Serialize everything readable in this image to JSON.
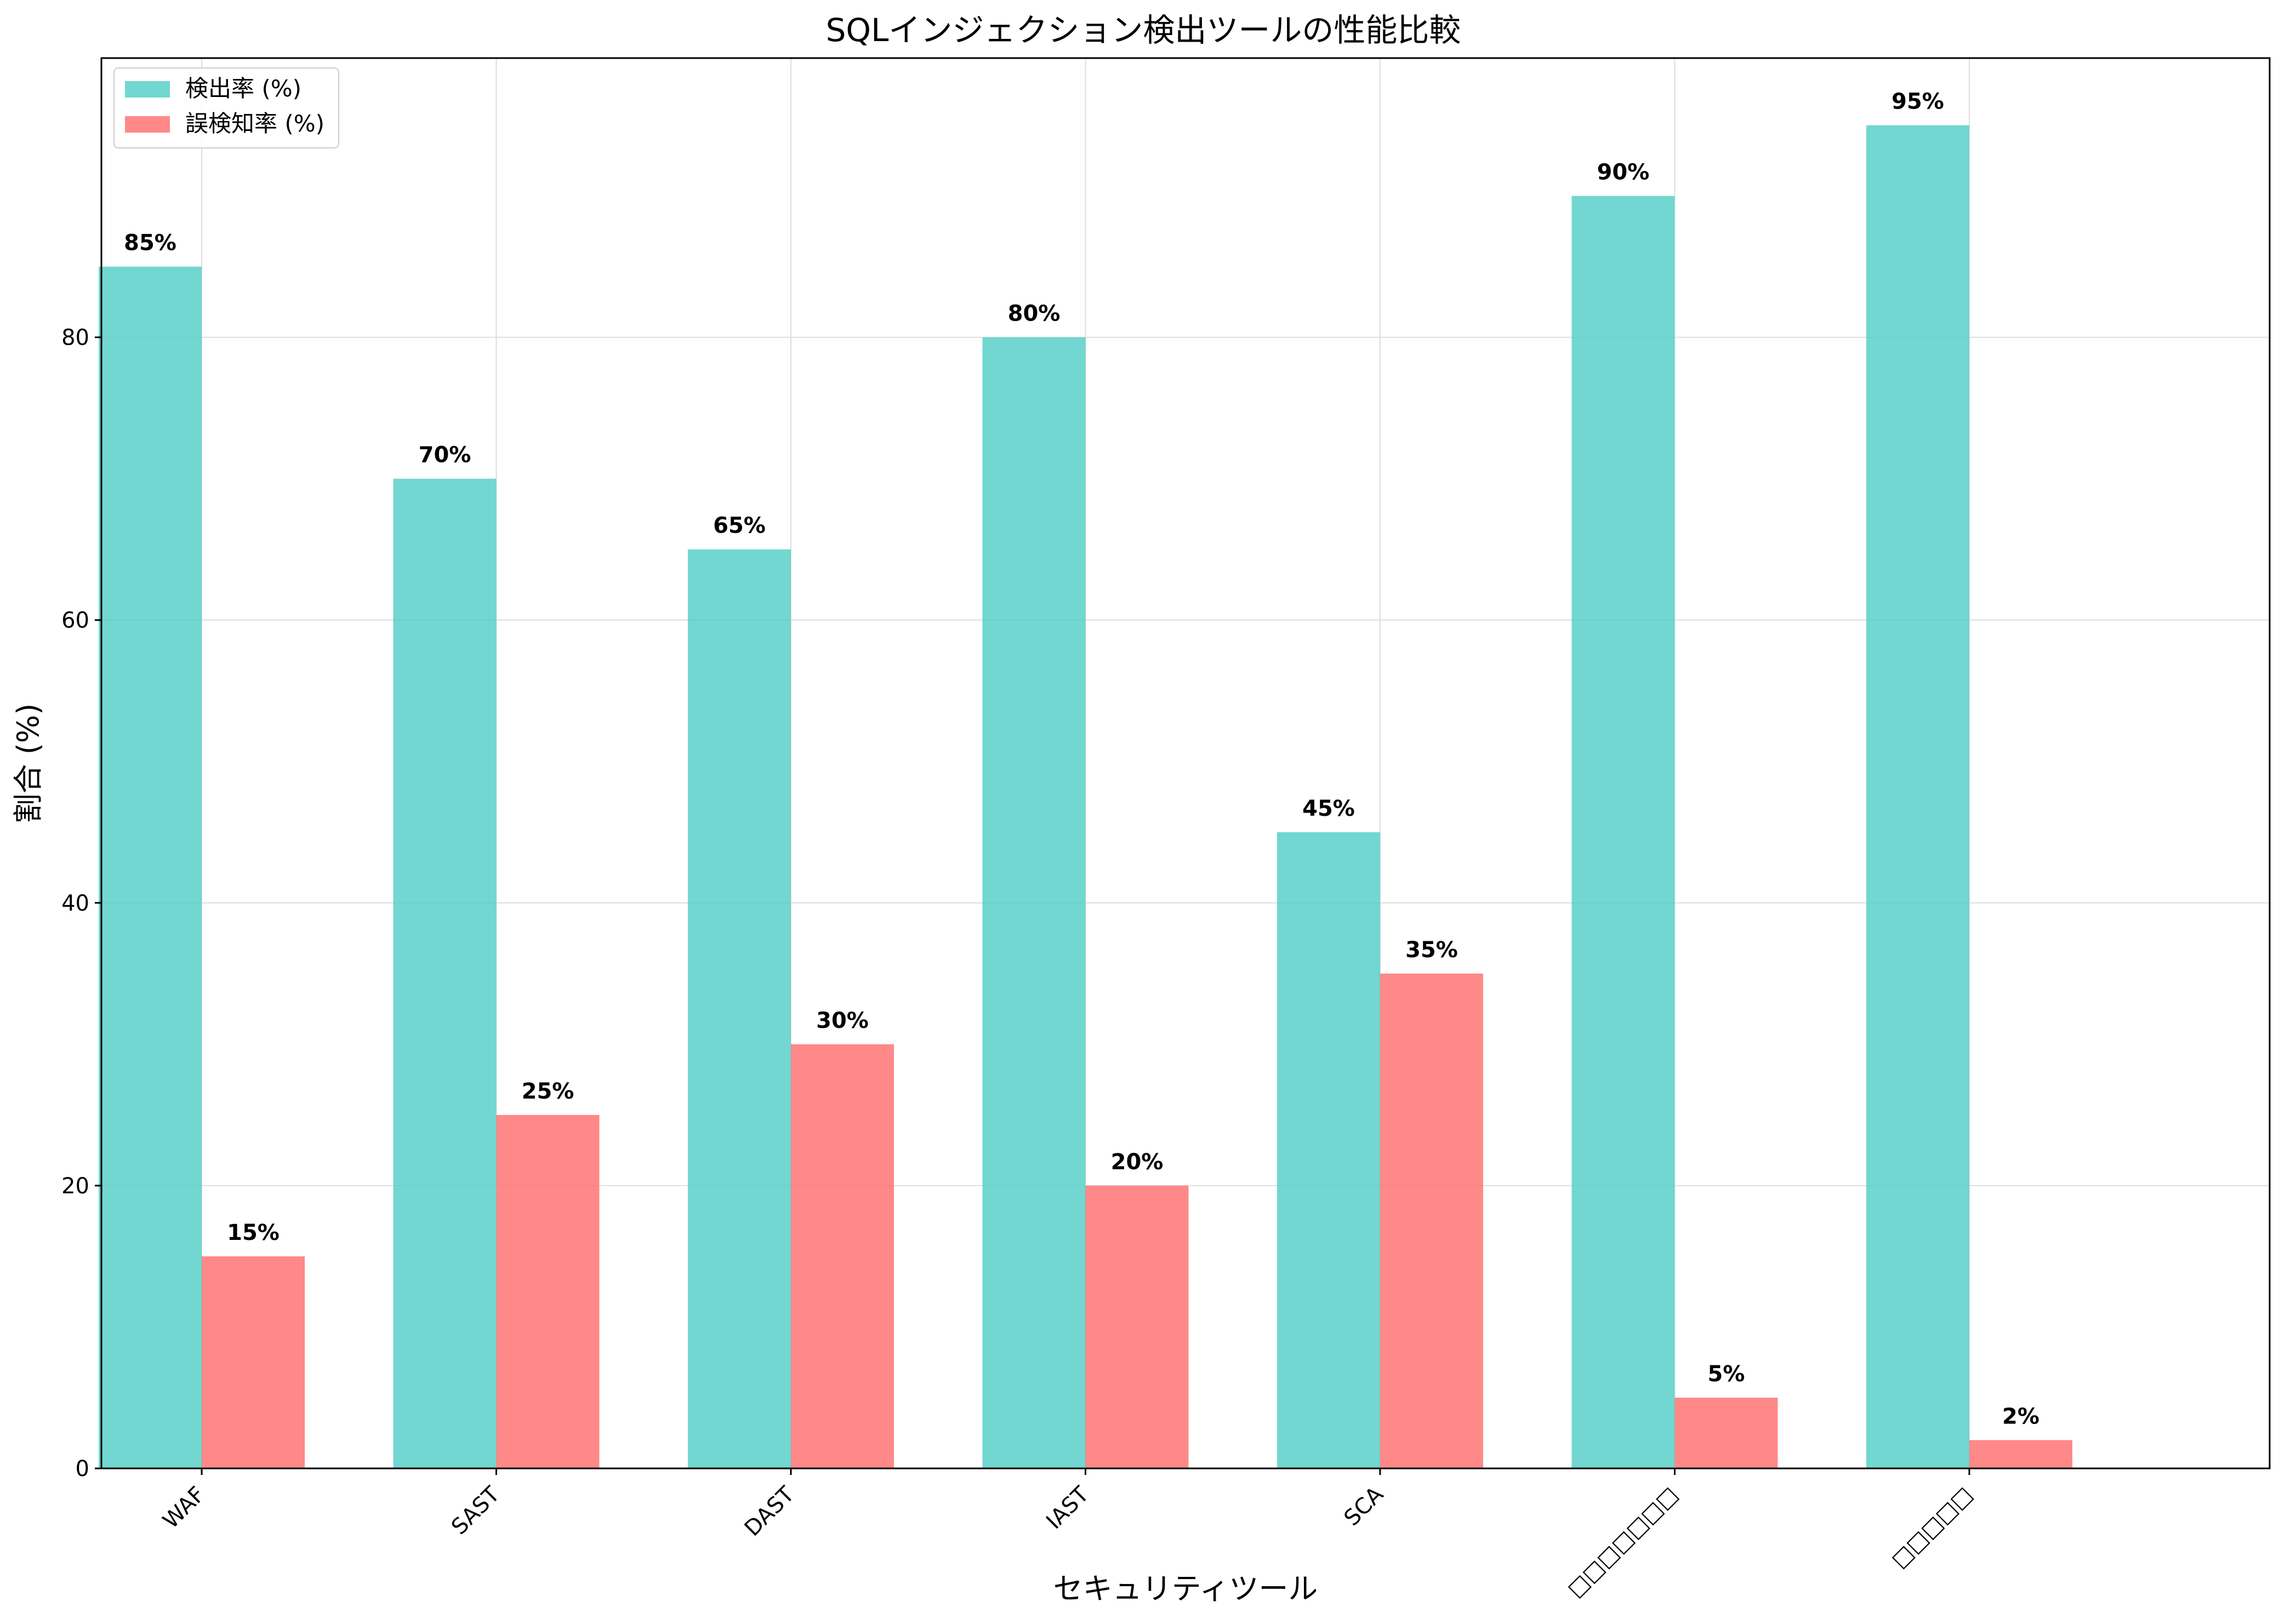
{
  "chart_data": {
    "type": "bar",
    "title": "SQLインジェクション検出ツールの性能比較",
    "xlabel": "セキュリティツール",
    "ylabel": "割合 (%)",
    "categories": [
      "WAF",
      "SAST",
      "DAST",
      "IAST",
      "SCA",
      "□□□□□□□",
      "□□□□□"
    ],
    "series": [
      {
        "name": "検出率 (%)",
        "color": "#4ecdc4",
        "values": [
          85,
          70,
          65,
          80,
          45,
          90,
          95
        ]
      },
      {
        "name": "誤検知率 (%)",
        "color": "#ff6b6b",
        "values": [
          15,
          25,
          30,
          20,
          35,
          5,
          2
        ]
      }
    ],
    "value_label_suffix": "%",
    "ylim": [
      0,
      99.75
    ],
    "yticks": [
      0,
      20,
      40,
      60,
      80
    ],
    "grid": true,
    "legend_position": "top-left"
  }
}
